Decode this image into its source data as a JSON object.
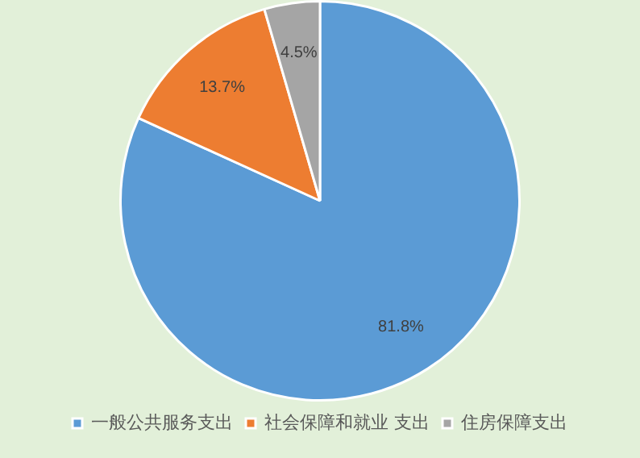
{
  "chart_data": {
    "type": "pie",
    "categories": [
      "一般公共服务支出",
      "社会保障和就业 支出",
      "住房保障支出"
    ],
    "values": [
      81.8,
      13.7,
      4.5
    ],
    "colors": [
      "#5b9bd5",
      "#ed7d31",
      "#a5a5a5"
    ],
    "value_labels": [
      "81.8%",
      "13.7%",
      "4.5%"
    ],
    "legend": "bottom"
  }
}
